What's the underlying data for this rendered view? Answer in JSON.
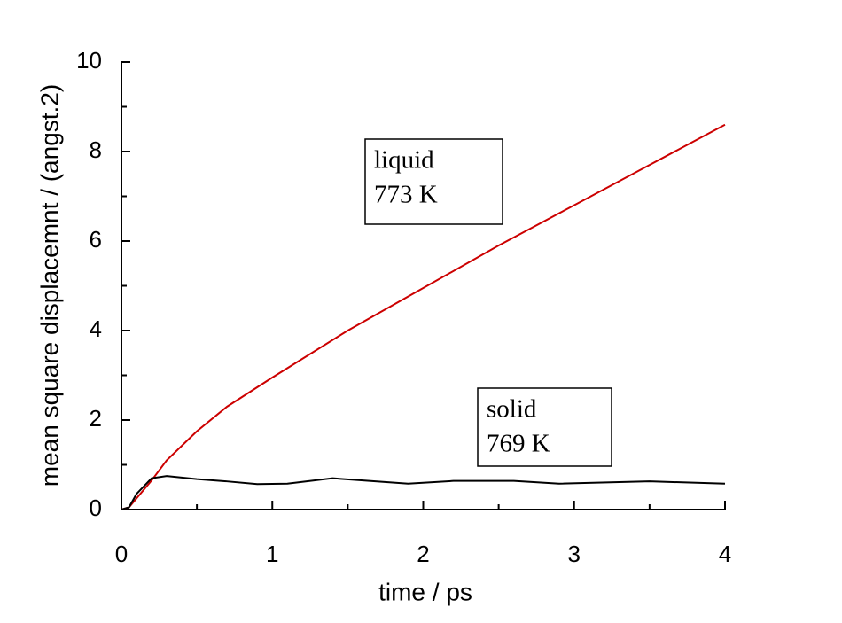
{
  "chart_data": {
    "type": "line",
    "xlabel": "time / ps",
    "ylabel": "mean square displacemnt / (angst.2)",
    "xlim": [
      0,
      4
    ],
    "xticks": [
      0,
      1,
      2,
      3,
      4
    ],
    "xminorticks": [
      0.5,
      1.5,
      2.5,
      3.5
    ],
    "ylim": [
      0,
      10
    ],
    "yticks": [
      0,
      2,
      4,
      6,
      8,
      10
    ],
    "yminorticks": [
      1,
      3,
      5,
      7,
      9
    ],
    "series": [
      {
        "color": "#cc0000",
        "x": [
          0,
          0.05,
          0.1,
          0.2,
          0.3,
          0.5,
          0.7,
          1.0,
          1.5,
          2.0,
          2.5,
          3.0,
          3.5,
          4.0
        ],
        "values": [
          0,
          0.05,
          0.25,
          0.65,
          1.1,
          1.75,
          2.3,
          2.95,
          4.0,
          4.95,
          5.9,
          6.8,
          7.7,
          8.6
        ]
      },
      {
        "color": "#000000",
        "x": [
          0,
          0.05,
          0.1,
          0.2,
          0.3,
          0.5,
          0.7,
          0.9,
          1.1,
          1.4,
          1.6,
          1.9,
          2.2,
          2.6,
          2.9,
          3.5,
          4.0
        ],
        "values": [
          0,
          0.05,
          0.35,
          0.7,
          0.75,
          0.68,
          0.63,
          0.57,
          0.58,
          0.7,
          0.65,
          0.58,
          0.64,
          0.64,
          0.58,
          0.63,
          0.58
        ]
      }
    ],
    "annotations": [
      {
        "lines": [
          "liquid",
          "773 K"
        ]
      },
      {
        "lines": [
          "solid",
          "769 K"
        ]
      }
    ]
  }
}
